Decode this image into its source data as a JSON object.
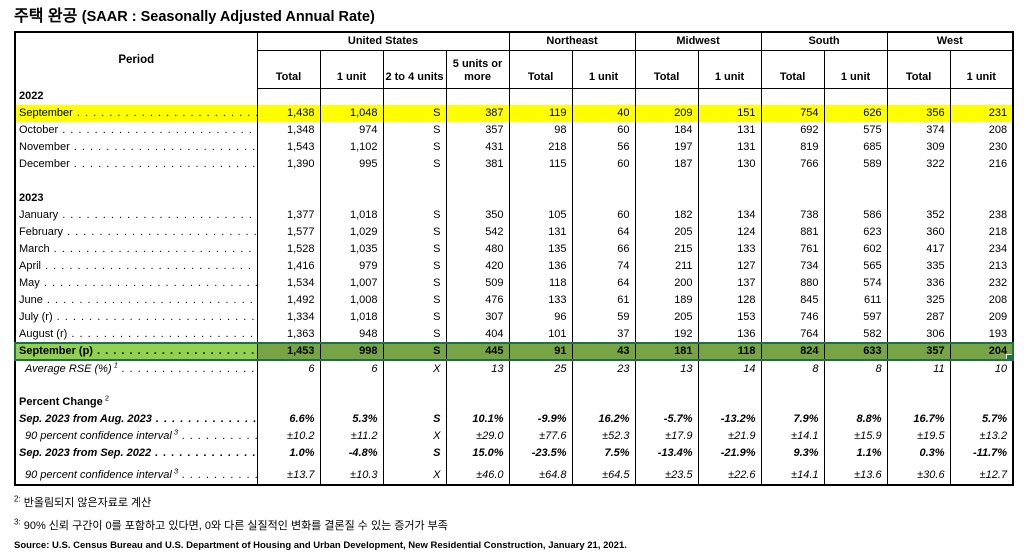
{
  "title": {
    "kr": "주택 완공",
    "en": "(SAAR : Seasonally Adjusted Annual Rate)"
  },
  "colors": {
    "highlight_yellow": "#ffff00",
    "highlight_green_label": "#92d050",
    "highlight_green_data": "#77a445",
    "selection_border": "#1e6f41"
  },
  "table": {
    "period_header": "Period",
    "groups": [
      {
        "label": "United States",
        "cols": [
          "Total",
          "1 unit",
          "2 to 4 units",
          "5 units or more"
        ]
      },
      {
        "label": "Northeast",
        "cols": [
          "Total",
          "1 unit"
        ]
      },
      {
        "label": "Midwest",
        "cols": [
          "Total",
          "1 unit"
        ]
      },
      {
        "label": "South",
        "cols": [
          "Total",
          "1 unit"
        ]
      },
      {
        "label": "West",
        "cols": [
          "Total",
          "1 unit"
        ]
      }
    ],
    "rows": [
      {
        "style": "year",
        "label": "2022"
      },
      {
        "style": "normal",
        "highlight": "yellow",
        "dots": true,
        "label": "September",
        "values": [
          "1,438",
          "1,048",
          "S",
          "387",
          "119",
          "40",
          "209",
          "151",
          "754",
          "626",
          "356",
          "231"
        ]
      },
      {
        "style": "normal",
        "dots": true,
        "label": "October",
        "values": [
          "1,348",
          "974",
          "S",
          "357",
          "98",
          "60",
          "184",
          "131",
          "692",
          "575",
          "374",
          "208"
        ]
      },
      {
        "style": "normal",
        "dots": true,
        "label": "November",
        "values": [
          "1,543",
          "1,102",
          "S",
          "431",
          "218",
          "56",
          "197",
          "131",
          "819",
          "685",
          "309",
          "230"
        ]
      },
      {
        "style": "normal",
        "dots": true,
        "label": "December",
        "values": [
          "1,390",
          "995",
          "S",
          "381",
          "115",
          "60",
          "187",
          "130",
          "766",
          "589",
          "322",
          "216"
        ]
      },
      {
        "style": "blank"
      },
      {
        "style": "year",
        "label": "2023"
      },
      {
        "style": "normal",
        "dots": true,
        "label": "January",
        "values": [
          "1,377",
          "1,018",
          "S",
          "350",
          "105",
          "60",
          "182",
          "134",
          "738",
          "586",
          "352",
          "238"
        ]
      },
      {
        "style": "normal",
        "dots": true,
        "label": "February",
        "values": [
          "1,577",
          "1,029",
          "S",
          "542",
          "131",
          "64",
          "205",
          "124",
          "881",
          "623",
          "360",
          "218"
        ]
      },
      {
        "style": "normal",
        "dots": true,
        "label": "March",
        "values": [
          "1,528",
          "1,035",
          "S",
          "480",
          "135",
          "66",
          "215",
          "133",
          "761",
          "602",
          "417",
          "234"
        ]
      },
      {
        "style": "normal",
        "dots": true,
        "label": "April",
        "values": [
          "1,416",
          "979",
          "S",
          "420",
          "136",
          "74",
          "211",
          "127",
          "734",
          "565",
          "335",
          "213"
        ]
      },
      {
        "style": "normal",
        "dots": true,
        "label": "May",
        "values": [
          "1,534",
          "1,007",
          "S",
          "509",
          "118",
          "64",
          "200",
          "137",
          "880",
          "574",
          "336",
          "232"
        ]
      },
      {
        "style": "normal",
        "dots": true,
        "label": "June",
        "values": [
          "1,492",
          "1,008",
          "S",
          "476",
          "133",
          "61",
          "189",
          "128",
          "845",
          "611",
          "325",
          "208"
        ]
      },
      {
        "style": "normal",
        "dots": true,
        "label": "July (r)",
        "values": [
          "1,334",
          "1,018",
          "S",
          "307",
          "96",
          "59",
          "205",
          "153",
          "746",
          "597",
          "287",
          "209"
        ]
      },
      {
        "style": "normal",
        "dots": true,
        "label": "August (r)",
        "values": [
          "1,363",
          "948",
          "S",
          "404",
          "101",
          "37",
          "192",
          "136",
          "764",
          "582",
          "306",
          "193"
        ]
      },
      {
        "style": "normal-bold",
        "highlight": "green",
        "dots": true,
        "label": "September (p)",
        "values": [
          "1,453",
          "998",
          "S",
          "445",
          "91",
          "43",
          "181",
          "118",
          "824",
          "633",
          "357",
          "204"
        ]
      },
      {
        "style": "italic",
        "dots": true,
        "label": "Average RSE (%)",
        "sup": "1",
        "values": [
          "6",
          "6",
          "X",
          "13",
          "25",
          "23",
          "13",
          "14",
          "8",
          "8",
          "11",
          "10"
        ]
      },
      {
        "style": "blank"
      },
      {
        "style": "section",
        "label": "Percent Change",
        "sup": "2"
      },
      {
        "style": "bold-italic",
        "dots": true,
        "label": "Sep. 2023 from Aug. 2023",
        "values": [
          "6.6%",
          "5.3%",
          "S",
          "10.1%",
          "-9.9%",
          "16.2%",
          "-5.7%",
          "-13.2%",
          "7.9%",
          "8.8%",
          "16.7%",
          "5.7%"
        ]
      },
      {
        "style": "italic",
        "dots": true,
        "label": "90 percent confidence interval",
        "sup": "3",
        "values": [
          "±10.2",
          "±11.2",
          "X",
          "±29.0",
          "±77.6",
          "±52.3",
          "±17.9",
          "±21.9",
          "±14.1",
          "±15.9",
          "±19.5",
          "±13.2"
        ]
      },
      {
        "style": "bold-italic",
        "dots": true,
        "label": "Sep. 2023 from Sep. 2022",
        "values": [
          "1.0%",
          "-4.8%",
          "S",
          "15.0%",
          "-23.5%",
          "7.5%",
          "-13.4%",
          "-21.9%",
          "9.3%",
          "1.1%",
          "0.3%",
          "-11.7%"
        ]
      },
      {
        "style": "italic",
        "dots": true,
        "last": true,
        "label": "90 percent confidence interval",
        "sup": "3",
        "values": [
          "±13.7",
          "±10.3",
          "X",
          "±46.0",
          "±64.8",
          "±64.5",
          "±23.5",
          "±22.6",
          "±14.1",
          "±13.6",
          "±30.6",
          "±12.7"
        ]
      }
    ]
  },
  "footnotes": [
    {
      "marker": "2:",
      "text": "반올림되지 않은자료로 계산"
    },
    {
      "marker": "3:",
      "text": "90% 신뢰 구간이 0를 포함하고 있다면, 0와 다른 실질적인 변화를 결론질 수 있는 증거가 부족"
    }
  ],
  "source": "Source: U.S. Census Bureau and U.S. Department of Housing and Urban Development, New Residential Construction, January 21, 2021."
}
